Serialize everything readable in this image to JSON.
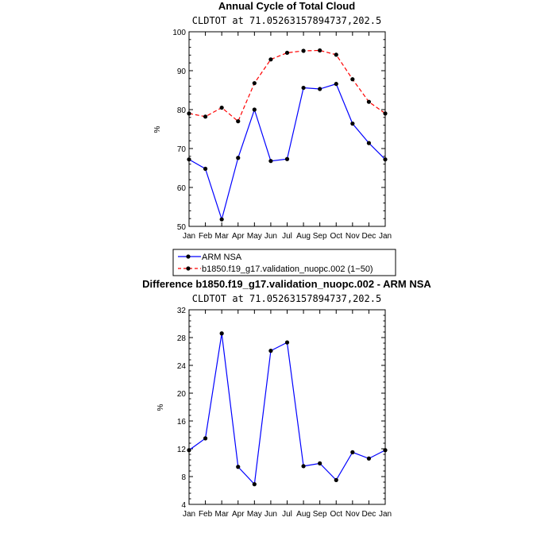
{
  "chart_data": [
    {
      "type": "line",
      "title": "Annual Cycle of Total Cloud",
      "subtitle": "CLDTOT at 71.05263157894737,202.5",
      "ylabel": "%",
      "xlabel": "",
      "ylim": [
        50,
        100
      ],
      "yticks": [
        50,
        60,
        70,
        80,
        90,
        100
      ],
      "categories": [
        "Jan",
        "Feb",
        "Mar",
        "Apr",
        "May",
        "Jun",
        "Jul",
        "Aug",
        "Sep",
        "Oct",
        "Nov",
        "Dec",
        "Jan"
      ],
      "series": [
        {
          "name": "ARM NSA",
          "color": "#0000ff",
          "dash": "solid",
          "values": [
            67.2,
            64.8,
            51.8,
            67.6,
            80.0,
            66.8,
            67.3,
            85.6,
            85.3,
            86.6,
            76.4,
            71.4,
            67.2
          ]
        },
        {
          "name": "b1850.f19_g17.validation_nuopc.002 (1-50)",
          "color": "#ff0000",
          "dash": "dashed",
          "values": [
            79.0,
            78.2,
            80.5,
            77.0,
            86.8,
            92.9,
            94.6,
            95.1,
            95.2,
            94.1,
            87.8,
            82.0,
            79.0
          ]
        }
      ],
      "legend": "below",
      "legend_entries": [
        "ARM NSA",
        "b1850.f19_g17.validation_nuopc.002 (1−50)"
      ]
    },
    {
      "type": "line",
      "title": "Difference b1850.f19_g17.validation_nuopc.002 - ARM NSA",
      "subtitle": "CLDTOT at 71.05263157894737,202.5",
      "ylabel": "%",
      "xlabel": "",
      "ylim": [
        4,
        32
      ],
      "yticks": [
        4,
        8,
        12,
        16,
        20,
        24,
        28,
        32
      ],
      "categories": [
        "Jan",
        "Feb",
        "Mar",
        "Apr",
        "May",
        "Jun",
        "Jul",
        "Aug",
        "Sep",
        "Oct",
        "Nov",
        "Dec",
        "Jan"
      ],
      "series": [
        {
          "name": "Difference",
          "color": "#0000ff",
          "dash": "solid",
          "values": [
            11.8,
            13.5,
            28.6,
            9.4,
            6.9,
            26.1,
            27.3,
            9.5,
            9.9,
            7.5,
            11.5,
            10.6,
            11.8
          ]
        }
      ]
    }
  ]
}
